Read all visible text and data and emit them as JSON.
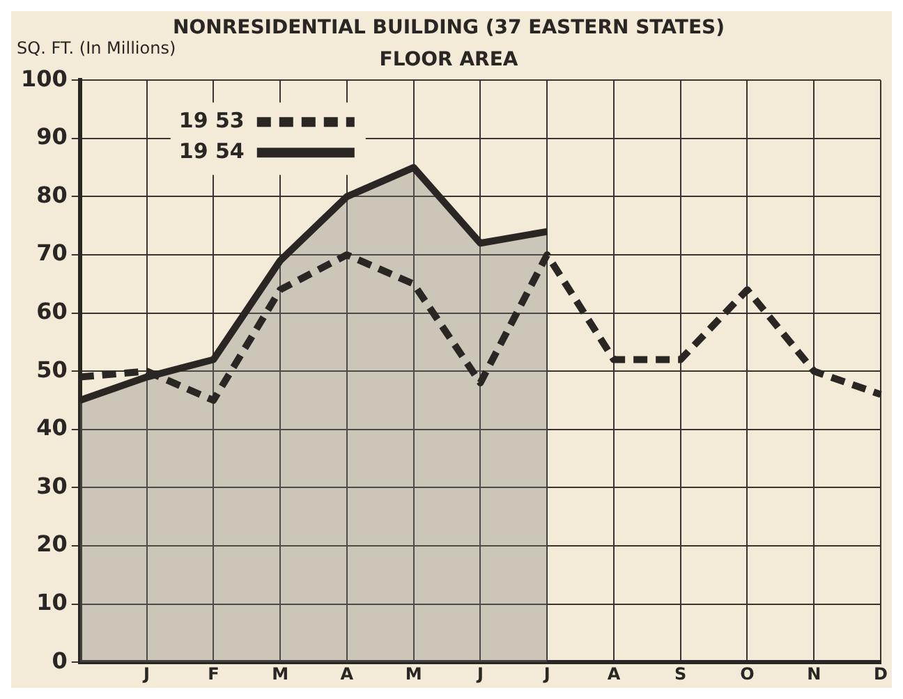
{
  "chart_data": {
    "type": "line",
    "title": "NONRESIDENTIAL BUILDING (37 EASTERN STATES)",
    "subtitle": "FLOOR AREA",
    "ylabel": "SQ. FT. (In Millions)",
    "categories": [
      null,
      "J",
      "F",
      "M",
      "A",
      "M",
      "J",
      "J",
      "A",
      "S",
      "O",
      "N",
      "D"
    ],
    "series": [
      {
        "name": "19 53",
        "color": "#2a2624",
        "line_style": "dashed",
        "values": [
          49,
          50,
          45,
          64,
          70,
          65,
          48,
          70,
          52,
          52,
          64,
          50,
          46
        ]
      },
      {
        "name": "19 54",
        "type": "area",
        "color": "#2a2624",
        "line_style": "solid",
        "values": [
          45,
          49,
          52,
          69,
          80,
          85,
          72,
          74,
          null,
          null,
          null,
          null,
          null
        ]
      }
    ],
    "ylim": [
      0,
      100
    ],
    "yticks": [
      0,
      10,
      20,
      30,
      40,
      50,
      60,
      70,
      80,
      90,
      100
    ],
    "grid": true,
    "legend": "top left",
    "marker": "none"
  }
}
